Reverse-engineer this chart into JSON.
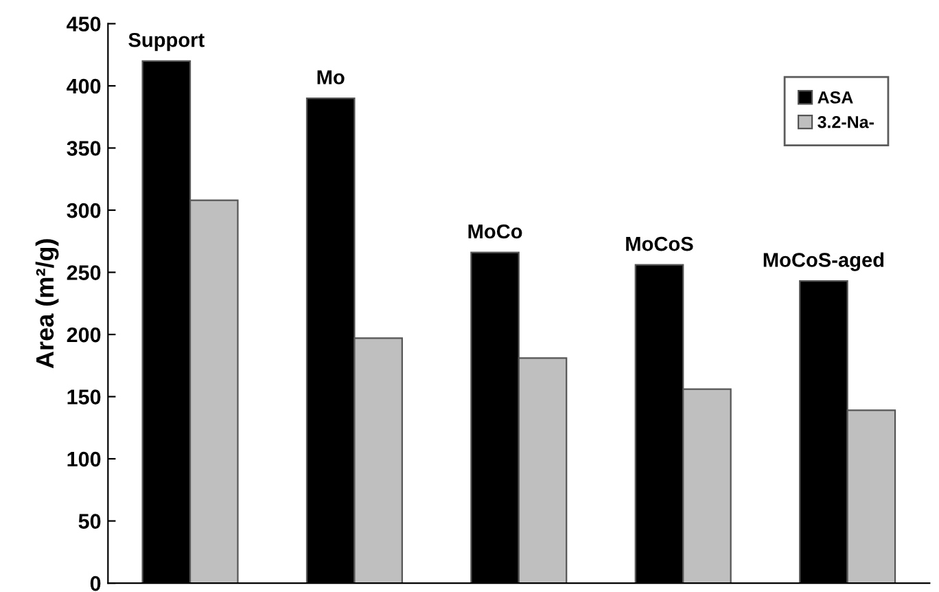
{
  "chart_data": {
    "type": "bar",
    "ylabel": "Area (m²/g)",
    "categories": [
      "Support",
      "Mo",
      "MoCo",
      "MoCoS",
      "MoCoS-aged"
    ],
    "series": [
      {
        "name": "ASA",
        "color": "#000000",
        "values": [
          420,
          390,
          266,
          256,
          243
        ]
      },
      {
        "name": "3.2-Na-",
        "color": "#bfbfbf",
        "values": [
          308,
          197,
          181,
          156,
          139
        ]
      }
    ],
    "ylim": [
      0,
      450
    ],
    "yticks": [
      0,
      50,
      100,
      150,
      200,
      250,
      300,
      350,
      400,
      450
    ],
    "grid": false,
    "legend": "top right"
  }
}
